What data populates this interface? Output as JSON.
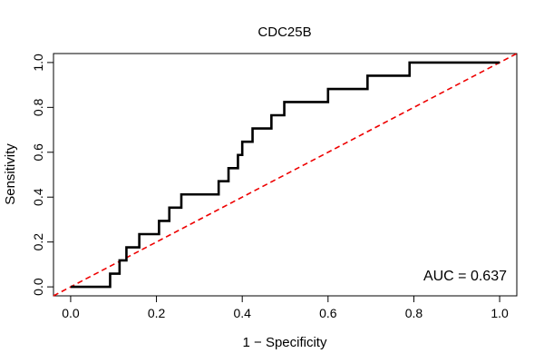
{
  "chart_data": {
    "type": "line",
    "title": "CDC25B",
    "xlabel": "1 − Specificity",
    "ylabel": "Sensitivity",
    "xlim": [
      -0.04,
      1.04
    ],
    "ylim": [
      -0.04,
      1.04
    ],
    "x_ticks": [
      0.0,
      0.2,
      0.4,
      0.6,
      0.8,
      1.0
    ],
    "y_ticks": [
      0.0,
      0.2,
      0.4,
      0.6,
      0.8,
      1.0
    ],
    "x_tick_labels": [
      "0.0",
      "0.2",
      "0.4",
      "0.6",
      "0.8",
      "1.0"
    ],
    "y_tick_labels": [
      "0.0",
      "0.2",
      "0.4",
      "0.6",
      "0.8",
      "1.0"
    ],
    "grid": false,
    "annotation": "AUC = 0.637",
    "series": [
      {
        "color": "#000000",
        "style": "solid",
        "x": [
          0.0,
          0.092,
          0.092,
          0.114,
          0.114,
          0.13,
          0.13,
          0.144,
          0.144,
          0.16,
          0.16,
          0.206,
          0.206,
          0.23,
          0.23,
          0.244,
          0.244,
          0.258,
          0.258,
          0.345,
          0.345,
          0.368,
          0.368,
          0.39,
          0.39,
          0.4,
          0.4,
          0.424,
          0.424,
          0.468,
          0.468,
          0.498,
          0.498,
          0.6,
          0.6,
          0.692,
          0.692,
          0.79,
          0.79,
          1.0
        ],
        "y": [
          0.0,
          0.0,
          0.059,
          0.059,
          0.118,
          0.118,
          0.176,
          0.176,
          0.176,
          0.176,
          0.235,
          0.235,
          0.294,
          0.294,
          0.353,
          0.353,
          0.353,
          0.353,
          0.412,
          0.412,
          0.471,
          0.471,
          0.529,
          0.529,
          0.588,
          0.588,
          0.647,
          0.647,
          0.706,
          0.706,
          0.765,
          0.765,
          0.824,
          0.824,
          0.882,
          0.882,
          0.941,
          0.941,
          1.0,
          1.0
        ]
      },
      {
        "color": "#ee0000",
        "style": "dashed",
        "x": [
          -0.04,
          1.04
        ],
        "y": [
          -0.04,
          1.04
        ]
      }
    ]
  }
}
